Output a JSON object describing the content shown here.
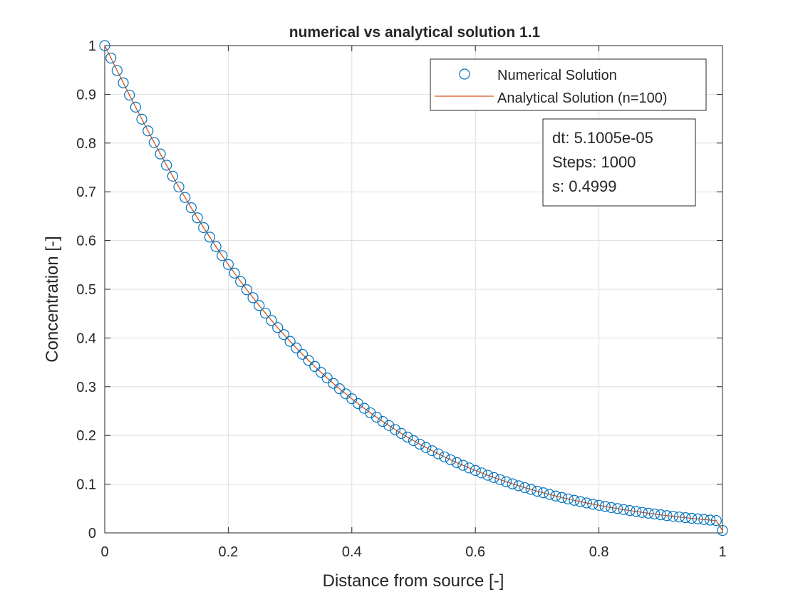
{
  "chart_data": {
    "type": "scatter",
    "title": "numerical vs analytical solution 1.1",
    "xlabel": "Distance from source [-]",
    "ylabel": "Concentration [-]",
    "xlim": [
      0,
      1
    ],
    "ylim": [
      0,
      1
    ],
    "xticks": [
      0,
      0.2,
      0.4,
      0.6,
      0.8,
      1
    ],
    "xtick_labels": [
      "0",
      "0.2",
      "0.4",
      "0.6",
      "0.8",
      "1"
    ],
    "yticks": [
      0,
      0.1,
      0.2,
      0.3,
      0.4,
      0.5,
      0.6,
      0.7,
      0.8,
      0.9,
      1
    ],
    "ytick_labels": [
      "0",
      "0.1",
      "0.2",
      "0.3",
      "0.4",
      "0.5",
      "0.6",
      "0.7",
      "0.8",
      "0.9",
      "1"
    ],
    "grid": true,
    "legend_position": "top-right",
    "series": [
      {
        "name": "Numerical Solution",
        "kind": "markers",
        "marker": "circle",
        "color": "#0072BD",
        "x": [
          0,
          0.01,
          0.02,
          0.03,
          0.04,
          0.05,
          0.06,
          0.07,
          0.08,
          0.09,
          0.1,
          0.11,
          0.12,
          0.13,
          0.14,
          0.15,
          0.16,
          0.17,
          0.18,
          0.19,
          0.2,
          0.21,
          0.22,
          0.23,
          0.24,
          0.25,
          0.26,
          0.27,
          0.28,
          0.29,
          0.3,
          0.31,
          0.32,
          0.33,
          0.34,
          0.35,
          0.36,
          0.37,
          0.38,
          0.39,
          0.4,
          0.41,
          0.42,
          0.43,
          0.44,
          0.45,
          0.46,
          0.47,
          0.48,
          0.49,
          0.5,
          0.51,
          0.52,
          0.53,
          0.54,
          0.55,
          0.56,
          0.57,
          0.58,
          0.59,
          0.6,
          0.61,
          0.62,
          0.63,
          0.64,
          0.65,
          0.66,
          0.67,
          0.68,
          0.69,
          0.7,
          0.71,
          0.72,
          0.73,
          0.74,
          0.75,
          0.76,
          0.77,
          0.78,
          0.79,
          0.8,
          0.81,
          0.82,
          0.83,
          0.84,
          0.85,
          0.86,
          0.87,
          0.88,
          0.89,
          0.9,
          0.91,
          0.92,
          0.93,
          0.94,
          0.95,
          0.96,
          0.97,
          0.98,
          0.99,
          1
        ],
        "y": [
          1,
          0.9744,
          0.9489,
          0.9236,
          0.8985,
          0.8737,
          0.8491,
          0.8249,
          0.8011,
          0.7776,
          0.7546,
          0.732,
          0.7099,
          0.6883,
          0.6672,
          0.6466,
          0.6265,
          0.6069,
          0.5877,
          0.569,
          0.5508,
          0.5331,
          0.5158,
          0.4989,
          0.4826,
          0.4666,
          0.4511,
          0.4359,
          0.4212,
          0.4069,
          0.3931,
          0.3796,
          0.3665,
          0.3538,
          0.3415,
          0.3296,
          0.318,
          0.3068,
          0.2959,
          0.2854,
          0.2752,
          0.2653,
          0.2557,
          0.2464,
          0.2374,
          0.2287,
          0.2203,
          0.2121,
          0.2042,
          0.1966,
          0.1893,
          0.1821,
          0.1753,
          0.1686,
          0.1622,
          0.156,
          0.15,
          0.1442,
          0.1387,
          0.1333,
          0.1281,
          0.1231,
          0.1183,
          0.1137,
          0.1092,
          0.1049,
          0.1007,
          0.0967,
          0.0929,
          0.0892,
          0.0856,
          0.0822,
          0.0789,
          0.0757,
          0.0726,
          0.0697,
          0.0669,
          0.0641,
          0.0615,
          0.059,
          0.0566,
          0.0543,
          0.052,
          0.0499,
          0.0478,
          0.0459,
          0.044,
          0.0421,
          0.0404,
          0.0387,
          0.0371,
          0.0355,
          0.0341,
          0.0326,
          0.0313,
          0.03,
          0.0287,
          0.0275,
          0.0263,
          0.0252,
          0.0049
        ]
      },
      {
        "name": "Analytical Solution (n=100)",
        "kind": "line",
        "color": "#D95319",
        "x": [
          0,
          0.01,
          0.02,
          0.03,
          0.04,
          0.05,
          0.06,
          0.07,
          0.08,
          0.09,
          0.1,
          0.11,
          0.12,
          0.13,
          0.14,
          0.15,
          0.16,
          0.17,
          0.18,
          0.19,
          0.2,
          0.21,
          0.22,
          0.23,
          0.24,
          0.25,
          0.26,
          0.27,
          0.28,
          0.29,
          0.3,
          0.31,
          0.32,
          0.33,
          0.34,
          0.35,
          0.36,
          0.37,
          0.38,
          0.39,
          0.4,
          0.41,
          0.42,
          0.43,
          0.44,
          0.45,
          0.46,
          0.47,
          0.48,
          0.49,
          0.5,
          0.51,
          0.52,
          0.53,
          0.54,
          0.55,
          0.56,
          0.57,
          0.58,
          0.59,
          0.6,
          0.61,
          0.62,
          0.63,
          0.64,
          0.65,
          0.66,
          0.67,
          0.68,
          0.69,
          0.7,
          0.71,
          0.72,
          0.73,
          0.74,
          0.75,
          0.76,
          0.77,
          0.78,
          0.79,
          0.8,
          0.81,
          0.82,
          0.83,
          0.84,
          0.85,
          0.86,
          0.87,
          0.88,
          0.89,
          0.9,
          0.91,
          0.92,
          0.93,
          0.94,
          0.95,
          0.96,
          0.97,
          0.98,
          0.99,
          1
        ],
        "y": [
          1,
          0.9744,
          0.9489,
          0.9236,
          0.8985,
          0.8737,
          0.8491,
          0.8249,
          0.8011,
          0.7776,
          0.7546,
          0.732,
          0.7099,
          0.6883,
          0.6672,
          0.6466,
          0.6265,
          0.6069,
          0.5877,
          0.569,
          0.5508,
          0.5331,
          0.5158,
          0.4989,
          0.4826,
          0.4666,
          0.4511,
          0.4359,
          0.4212,
          0.4069,
          0.3931,
          0.3796,
          0.3665,
          0.3538,
          0.3415,
          0.3296,
          0.318,
          0.3068,
          0.2959,
          0.2854,
          0.2752,
          0.2653,
          0.2557,
          0.2464,
          0.2374,
          0.2287,
          0.2203,
          0.2121,
          0.2042,
          0.1966,
          0.1893,
          0.1821,
          0.1753,
          0.1686,
          0.1622,
          0.156,
          0.15,
          0.1442,
          0.1387,
          0.1333,
          0.1281,
          0.1231,
          0.1183,
          0.1137,
          0.1092,
          0.1049,
          0.1007,
          0.0967,
          0.0929,
          0.0892,
          0.0856,
          0.0822,
          0.0789,
          0.0757,
          0.0726,
          0.0697,
          0.0669,
          0.0641,
          0.0615,
          0.059,
          0.0566,
          0.0543,
          0.052,
          0.0499,
          0.0478,
          0.0459,
          0.044,
          0.0421,
          0.0404,
          0.0387,
          0.0371,
          0.0355,
          0.0341,
          0.0326,
          0.0313,
          0.03,
          0.0287,
          0.0275,
          0.0263,
          0.0252,
          0.0049
        ]
      }
    ],
    "annotation": {
      "lines": [
        "dt: 5.1005e-05",
        "Steps: 1000",
        "s: 0.4999"
      ],
      "position": "upper-right, below legend"
    }
  },
  "colors": {
    "axes": "#262626",
    "grid": "#dfdfdf",
    "background": "#ffffff"
  }
}
